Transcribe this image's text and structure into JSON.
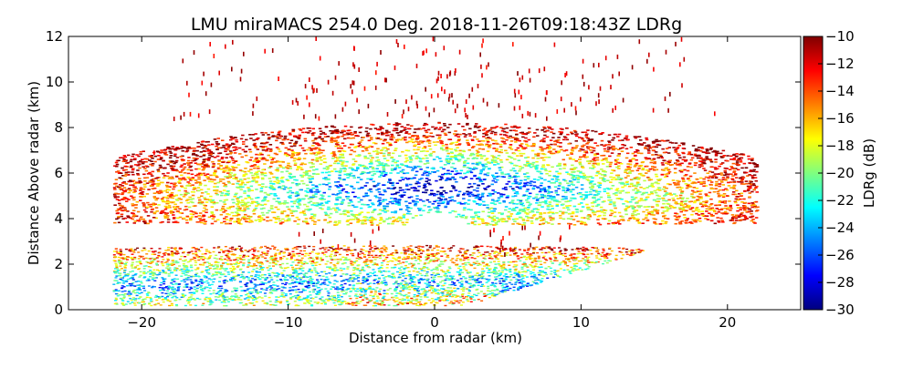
{
  "chart_data": {
    "type": "heatmap",
    "title": "LMU miraMACS 254.0 Deg. 2018-11-26T09:18:43Z  LDRg",
    "xlabel": "Distance from radar (km)",
    "ylabel": "Distance Above radar  (km)",
    "xlim": [
      -25,
      25
    ],
    "ylim": [
      0,
      12
    ],
    "xticks": [
      -20,
      -10,
      0,
      10,
      20
    ],
    "xtick_labels": [
      "−20",
      "−10",
      "0",
      "10",
      "20"
    ],
    "yticks": [
      0,
      2,
      4,
      6,
      8,
      10,
      12
    ],
    "ytick_labels": [
      "0",
      "2",
      "4",
      "6",
      "8",
      "10",
      "12"
    ],
    "colorbar": {
      "label": "LDRg (dB)",
      "vmin": -30,
      "vmax": -10,
      "ticks": [
        -30,
        -28,
        -26,
        -24,
        -22,
        -20,
        -18,
        -16,
        -14,
        -12,
        -10
      ],
      "tick_labels": [
        "−30",
        "−28",
        "−26",
        "−24",
        "−22",
        "−20",
        "−18",
        "−16",
        "−14",
        "−12",
        "−10"
      ],
      "colormap": "jet"
    },
    "regions": [
      {
        "name": "upper cloud layer",
        "x_range": [
          -22,
          22
        ],
        "z_range": [
          4.0,
          8.7
        ],
        "ldr_core_db": -28,
        "ldr_edge_db": -11
      },
      {
        "name": "lower cloud layer",
        "x_range": [
          -22,
          16
        ],
        "z_range": [
          0.2,
          2.8
        ],
        "ldr_core_db": -25,
        "ldr_edge_db": -13
      },
      {
        "name": "sparse high echoes",
        "x_range": [
          -20,
          21
        ],
        "z_range": [
          8.7,
          12
        ],
        "ldr_db": -10
      }
    ]
  },
  "colors": {
    "jet": [
      "#00007f",
      "#0000ff",
      "#007fff",
      "#00ffff",
      "#7fff7f",
      "#ffff00",
      "#ff7f00",
      "#ff0000",
      "#7f0000"
    ]
  }
}
